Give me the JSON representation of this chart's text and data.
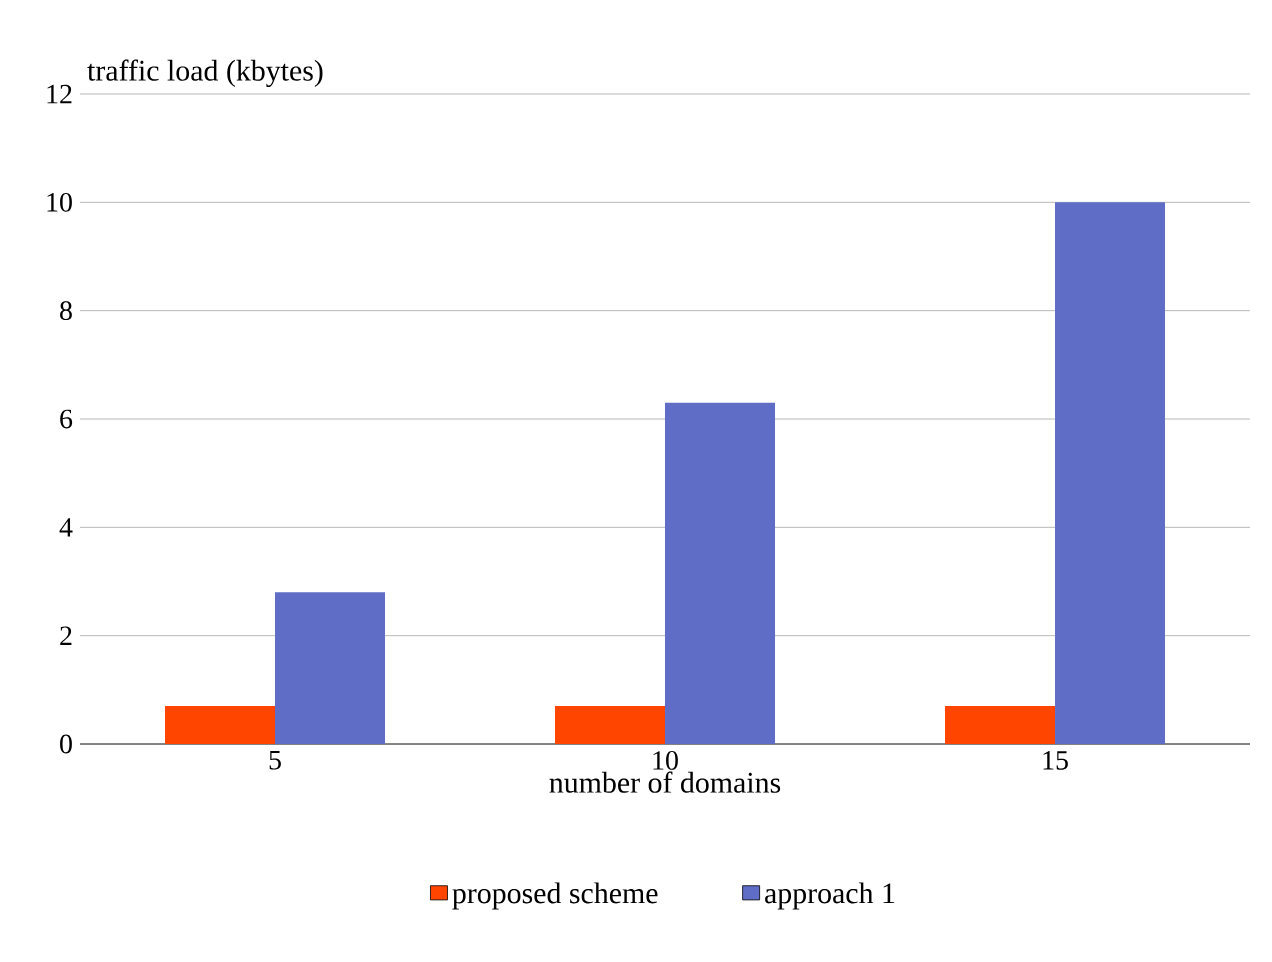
{
  "chart_data": {
    "type": "bar",
    "ylabel": "traffic  load (kbytes)",
    "xlabel": "number of domains",
    "categories": [
      "5",
      "10",
      "15"
    ],
    "series": [
      {
        "name": "proposed scheme",
        "color": "#ff4500",
        "values": [
          0.7,
          0.7,
          0.7
        ]
      },
      {
        "name": "approach 1",
        "color": "#5f6dc7",
        "values": [
          2.8,
          6.3,
          10
        ]
      }
    ],
    "ylim": [
      0,
      12
    ],
    "yticks": [
      0,
      2,
      4,
      6,
      8,
      10,
      12
    ],
    "grid": "y",
    "legend": "bottom"
  }
}
